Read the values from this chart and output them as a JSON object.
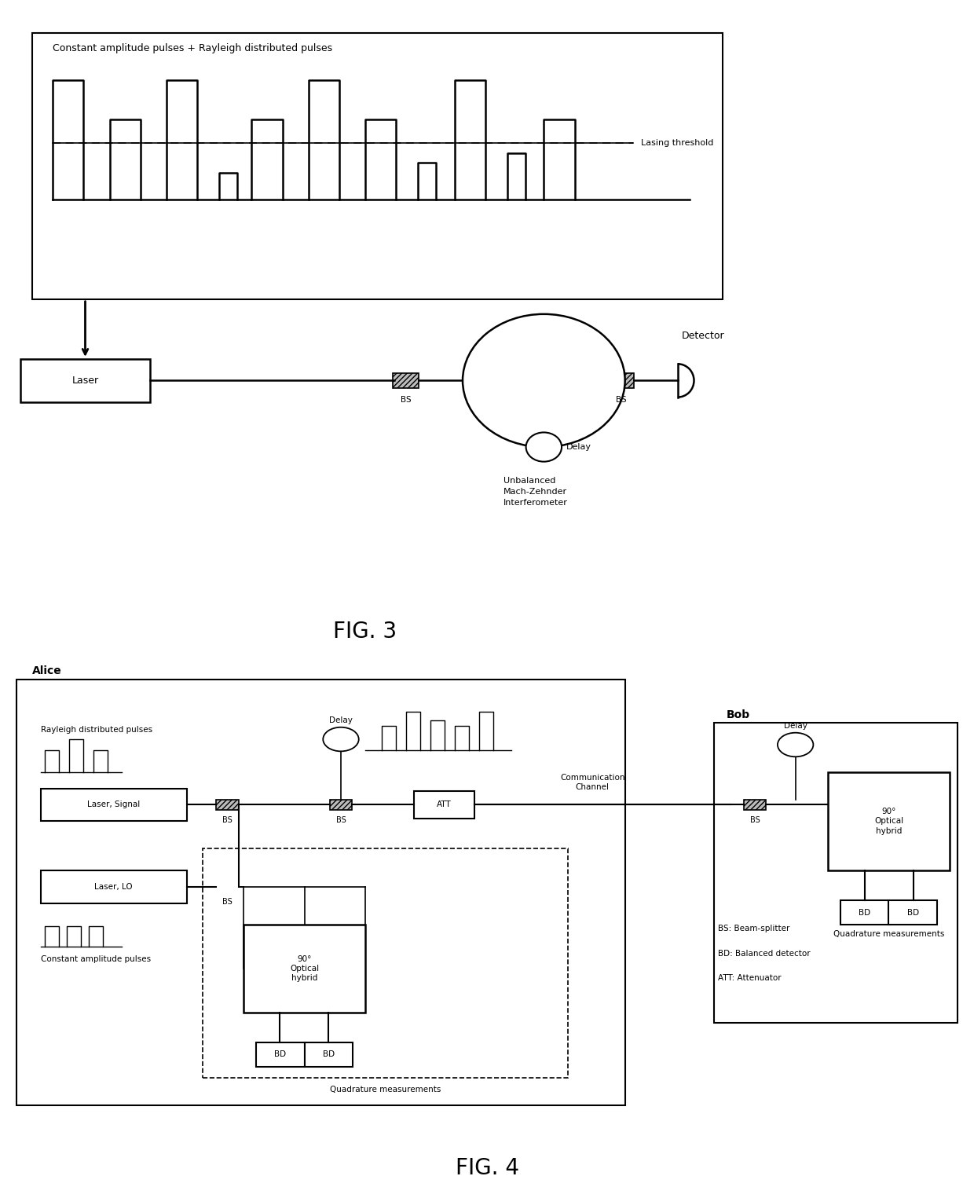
{
  "fig3": {
    "title": "FIG. 3",
    "pulse_box_text": "Constant amplitude pulses + Rayleigh distributed pulses",
    "lasing_threshold_text": "Lasing threshold",
    "laser_box_text": "Laser",
    "bs1_text": "BS",
    "bs2_text": "BS",
    "delay_text": "Delay",
    "interferometer_text": "Unbalanced\nMach-Zehnder\nInterferometer",
    "detector_text": "Detector"
  },
  "fig4": {
    "title": "FIG. 4",
    "alice_label": "Alice",
    "bob_label": "Bob",
    "laser_signal_text": "Laser, Signal",
    "laser_lo_text": "Laser, LO",
    "att_text": "ATT",
    "delay_text": "Delay",
    "delay2_text": "Delay",
    "optical_hybrid_text": "90°\nOptical\nhybrid",
    "optical_hybrid2_text": "90°\nOptical\nhybrid",
    "quadrature_text": "Quadrature measurements",
    "quadrature2_text": "Quadrature measurements",
    "comm_channel_text": "Communication\nChannel",
    "rayleigh_text": "Rayleigh distributed pulses",
    "const_amp_text": "Constant amplitude pulses",
    "legend_bs": "BS: Beam-splitter",
    "legend_bd": "BD: Balanced detector",
    "legend_att": "ATT: Attenuator"
  },
  "bg_color": "#ffffff",
  "line_color": "#000000",
  "font_size": 9,
  "title_font_size": 20
}
